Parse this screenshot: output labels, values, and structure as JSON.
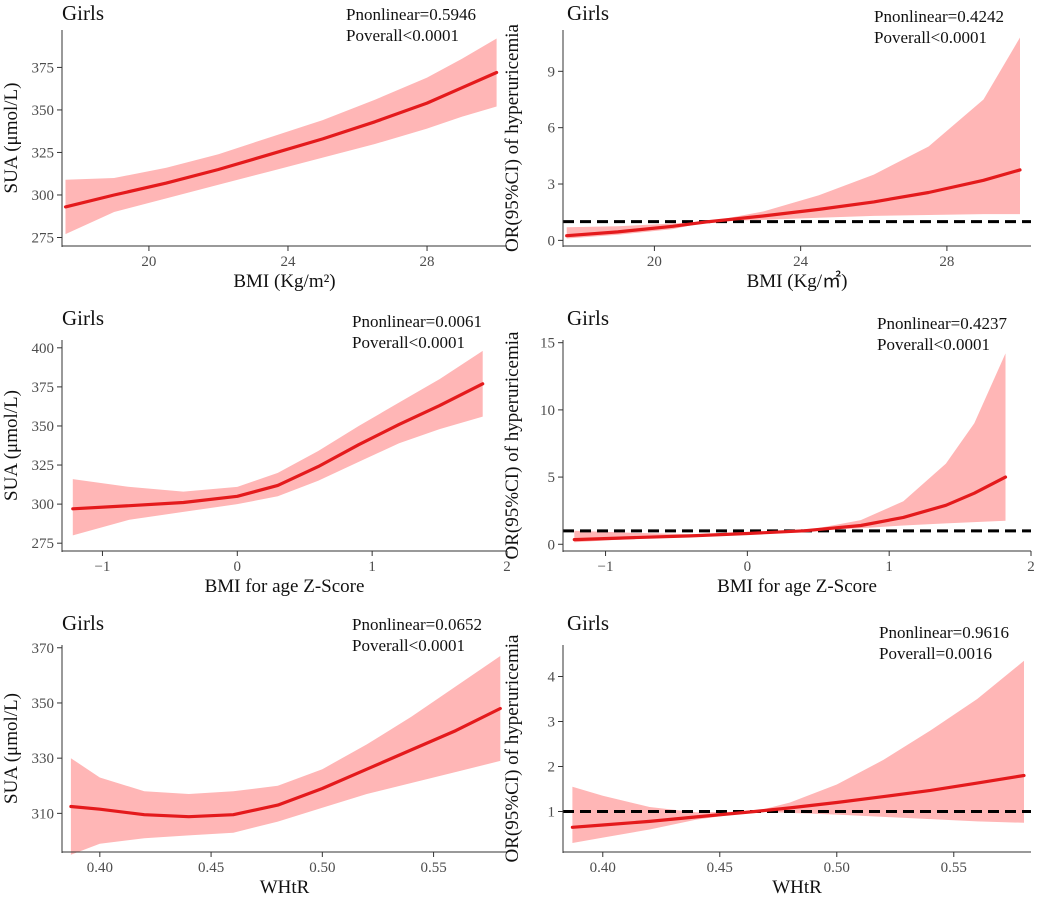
{
  "colors": {
    "line": "#e41a1c",
    "band": "#ffb6b6",
    "ref": "#000000",
    "axis": "#333333"
  },
  "chart_data": [
    {
      "id": "p1",
      "type": "line",
      "title": "Girls",
      "xlabel": "BMI (Kg/m²)",
      "ylabel": "SUA (μmol/L)",
      "xlim": [
        17.5,
        30.3
      ],
      "ylim": [
        270,
        397
      ],
      "xticks": [
        {
          "v": 20,
          "l": "20"
        },
        {
          "v": 24,
          "l": "24"
        },
        {
          "v": 28,
          "l": "28"
        }
      ],
      "yticks": [
        {
          "v": 275,
          "l": "275"
        },
        {
          "v": 300,
          "l": "300"
        },
        {
          "v": 325,
          "l": "325"
        },
        {
          "v": 350,
          "l": "350"
        },
        {
          "v": 375,
          "l": "375"
        }
      ],
      "annotations": [
        "Pnonlinear=0.5946",
        "Poverall<0.0001"
      ],
      "ref_line": null,
      "x": [
        17.6,
        19.0,
        20.5,
        22.0,
        23.5,
        25.0,
        26.5,
        28.0,
        29.0,
        30.0
      ],
      "y": [
        293,
        300,
        307,
        315,
        324,
        333,
        343,
        354,
        363,
        372
      ],
      "lower": [
        277,
        290,
        298,
        306,
        314,
        322,
        330,
        339,
        346,
        352
      ],
      "upper": [
        309,
        310,
        316,
        324,
        334,
        344,
        356,
        369,
        380,
        392
      ]
    },
    {
      "id": "p2",
      "type": "line",
      "title": "Girls",
      "xlabel": "BMI (Kg/㎡)",
      "ylabel": "OR(95%CI) of hyperuricemia",
      "xlim": [
        17.5,
        30.3
      ],
      "ylim": [
        -0.3,
        11.2
      ],
      "xticks": [
        {
          "v": 20,
          "l": "20"
        },
        {
          "v": 24,
          "l": "24"
        },
        {
          "v": 28,
          "l": "28"
        }
      ],
      "yticks": [
        {
          "v": 0,
          "l": "0"
        },
        {
          "v": 3,
          "l": "3"
        },
        {
          "v": 6,
          "l": "6"
        },
        {
          "v": 9,
          "l": "9"
        }
      ],
      "annotations": [
        "Pnonlinear=0.4242",
        "Poverall<0.0001"
      ],
      "ref_line": 1,
      "x": [
        17.6,
        19.0,
        20.5,
        21.5,
        23.0,
        24.5,
        26.0,
        27.5,
        29.0,
        30.0
      ],
      "y": [
        0.25,
        0.45,
        0.75,
        1.0,
        1.3,
        1.65,
        2.05,
        2.55,
        3.2,
        3.75
      ],
      "lower": [
        0.1,
        0.3,
        0.6,
        1.0,
        1.1,
        1.2,
        1.3,
        1.35,
        1.4,
        1.4
      ],
      "upper": [
        0.7,
        0.75,
        0.9,
        1.0,
        1.55,
        2.4,
        3.5,
        5.0,
        7.5,
        10.8
      ]
    },
    {
      "id": "p3",
      "type": "line",
      "title": "Girls",
      "xlabel": "BMI for age Z-Score",
      "ylabel": "SUA (μmol/L)",
      "xlim": [
        -1.3,
        2.0
      ],
      "ylim": [
        270,
        405
      ],
      "xticks": [
        {
          "v": -1,
          "l": "−1"
        },
        {
          "v": 0,
          "l": "0"
        },
        {
          "v": 1,
          "l": "1"
        },
        {
          "v": 2,
          "l": "2"
        }
      ],
      "yticks": [
        {
          "v": 275,
          "l": "275"
        },
        {
          "v": 300,
          "l": "300"
        },
        {
          "v": 325,
          "l": "325"
        },
        {
          "v": 350,
          "l": "350"
        },
        {
          "v": 375,
          "l": "375"
        },
        {
          "v": 400,
          "l": "400"
        }
      ],
      "annotations": [
        "Pnonlinear=0.0061",
        "Poverall<0.0001"
      ],
      "ref_line": null,
      "x": [
        -1.22,
        -0.8,
        -0.4,
        0.0,
        0.3,
        0.6,
        0.9,
        1.2,
        1.5,
        1.82
      ],
      "y": [
        297,
        299,
        301,
        305,
        312,
        324,
        338,
        351,
        363,
        377
      ],
      "lower": [
        280,
        290,
        295,
        300,
        305,
        315,
        327,
        339,
        348,
        356
      ],
      "upper": [
        316,
        311,
        308,
        311,
        320,
        334,
        350,
        365,
        380,
        398
      ]
    },
    {
      "id": "p4",
      "type": "line",
      "title": "Girls",
      "xlabel": "BMI for age Z-Score",
      "ylabel": "OR(95%CI) of hyperuricemia",
      "xlim": [
        -1.3,
        2.0
      ],
      "ylim": [
        -0.5,
        15.2
      ],
      "xticks": [
        {
          "v": -1,
          "l": "−1"
        },
        {
          "v": 0,
          "l": "0"
        },
        {
          "v": 1,
          "l": "1"
        },
        {
          "v": 2,
          "l": "2"
        }
      ],
      "yticks": [
        {
          "v": 0,
          "l": "0"
        },
        {
          "v": 5,
          "l": "5"
        },
        {
          "v": 10,
          "l": "10"
        },
        {
          "v": 15,
          "l": "15"
        }
      ],
      "annotations": [
        "Pnonlinear=0.4237",
        "Poverall<0.0001"
      ],
      "ref_line": 1,
      "x": [
        -1.22,
        -0.8,
        -0.4,
        0.0,
        0.4,
        0.8,
        1.1,
        1.4,
        1.6,
        1.82
      ],
      "y": [
        0.35,
        0.5,
        0.62,
        0.8,
        1.0,
        1.4,
        2.0,
        2.9,
        3.8,
        5.0
      ],
      "lower": [
        0.15,
        0.4,
        0.55,
        0.75,
        1.0,
        1.2,
        1.4,
        1.55,
        1.65,
        1.75
      ],
      "upper": [
        1.0,
        0.85,
        0.75,
        0.85,
        1.0,
        1.8,
        3.2,
        6.0,
        9.0,
        14.2
      ]
    },
    {
      "id": "p5",
      "type": "line",
      "title": "Girls",
      "xlabel": "WHtR",
      "ylabel": "SUA (μmol/L)",
      "xlim": [
        0.383,
        0.583
      ],
      "ylim": [
        296,
        371
      ],
      "xticks": [
        {
          "v": 0.4,
          "l": "0.40"
        },
        {
          "v": 0.45,
          "l": "0.45"
        },
        {
          "v": 0.5,
          "l": "0.50"
        },
        {
          "v": 0.55,
          "l": "0.55"
        }
      ],
      "yticks": [
        {
          "v": 310,
          "l": "310"
        },
        {
          "v": 330,
          "l": "330"
        },
        {
          "v": 350,
          "l": "350"
        },
        {
          "v": 370,
          "l": "370"
        }
      ],
      "annotations": [
        "Pnonlinear=0.0652",
        "Poverall<0.0001"
      ],
      "ref_line": null,
      "x": [
        0.387,
        0.4,
        0.42,
        0.44,
        0.46,
        0.48,
        0.5,
        0.52,
        0.54,
        0.56,
        0.58
      ],
      "y": [
        312.5,
        311.5,
        309.5,
        308.8,
        309.5,
        313,
        319,
        326,
        333,
        340,
        348
      ],
      "lower": [
        295,
        299,
        301,
        302,
        303,
        307,
        312,
        317,
        321,
        325,
        329
      ],
      "upper": [
        330,
        323,
        318,
        317,
        318,
        320,
        326,
        335,
        345,
        356,
        367
      ]
    },
    {
      "id": "p6",
      "type": "line",
      "title": "Girls",
      "xlabel": "WHtR",
      "ylabel": "OR(95%CI) of hyperuricemia",
      "xlim": [
        0.383,
        0.583
      ],
      "ylim": [
        0.1,
        4.7
      ],
      "xticks": [
        {
          "v": 0.4,
          "l": "0.40"
        },
        {
          "v": 0.45,
          "l": "0.45"
        },
        {
          "v": 0.5,
          "l": "0.50"
        },
        {
          "v": 0.55,
          "l": "0.55"
        }
      ],
      "yticks": [
        {
          "v": 1,
          "l": "1"
        },
        {
          "v": 2,
          "l": "2"
        },
        {
          "v": 3,
          "l": "3"
        },
        {
          "v": 4,
          "l": "4"
        }
      ],
      "annotations": [
        "Pnonlinear=0.9616",
        "Poverall=0.0016"
      ],
      "ref_line": 1,
      "x": [
        0.387,
        0.4,
        0.42,
        0.44,
        0.465,
        0.48,
        0.5,
        0.52,
        0.54,
        0.56,
        0.58
      ],
      "y": [
        0.65,
        0.7,
        0.78,
        0.88,
        1.0,
        1.08,
        1.2,
        1.33,
        1.47,
        1.63,
        1.8
      ],
      "lower": [
        0.3,
        0.42,
        0.6,
        0.82,
        1.0,
        0.97,
        0.93,
        0.88,
        0.83,
        0.78,
        0.75
      ],
      "upper": [
        1.55,
        1.35,
        1.1,
        0.98,
        1.0,
        1.2,
        1.6,
        2.15,
        2.8,
        3.5,
        4.35
      ]
    }
  ]
}
